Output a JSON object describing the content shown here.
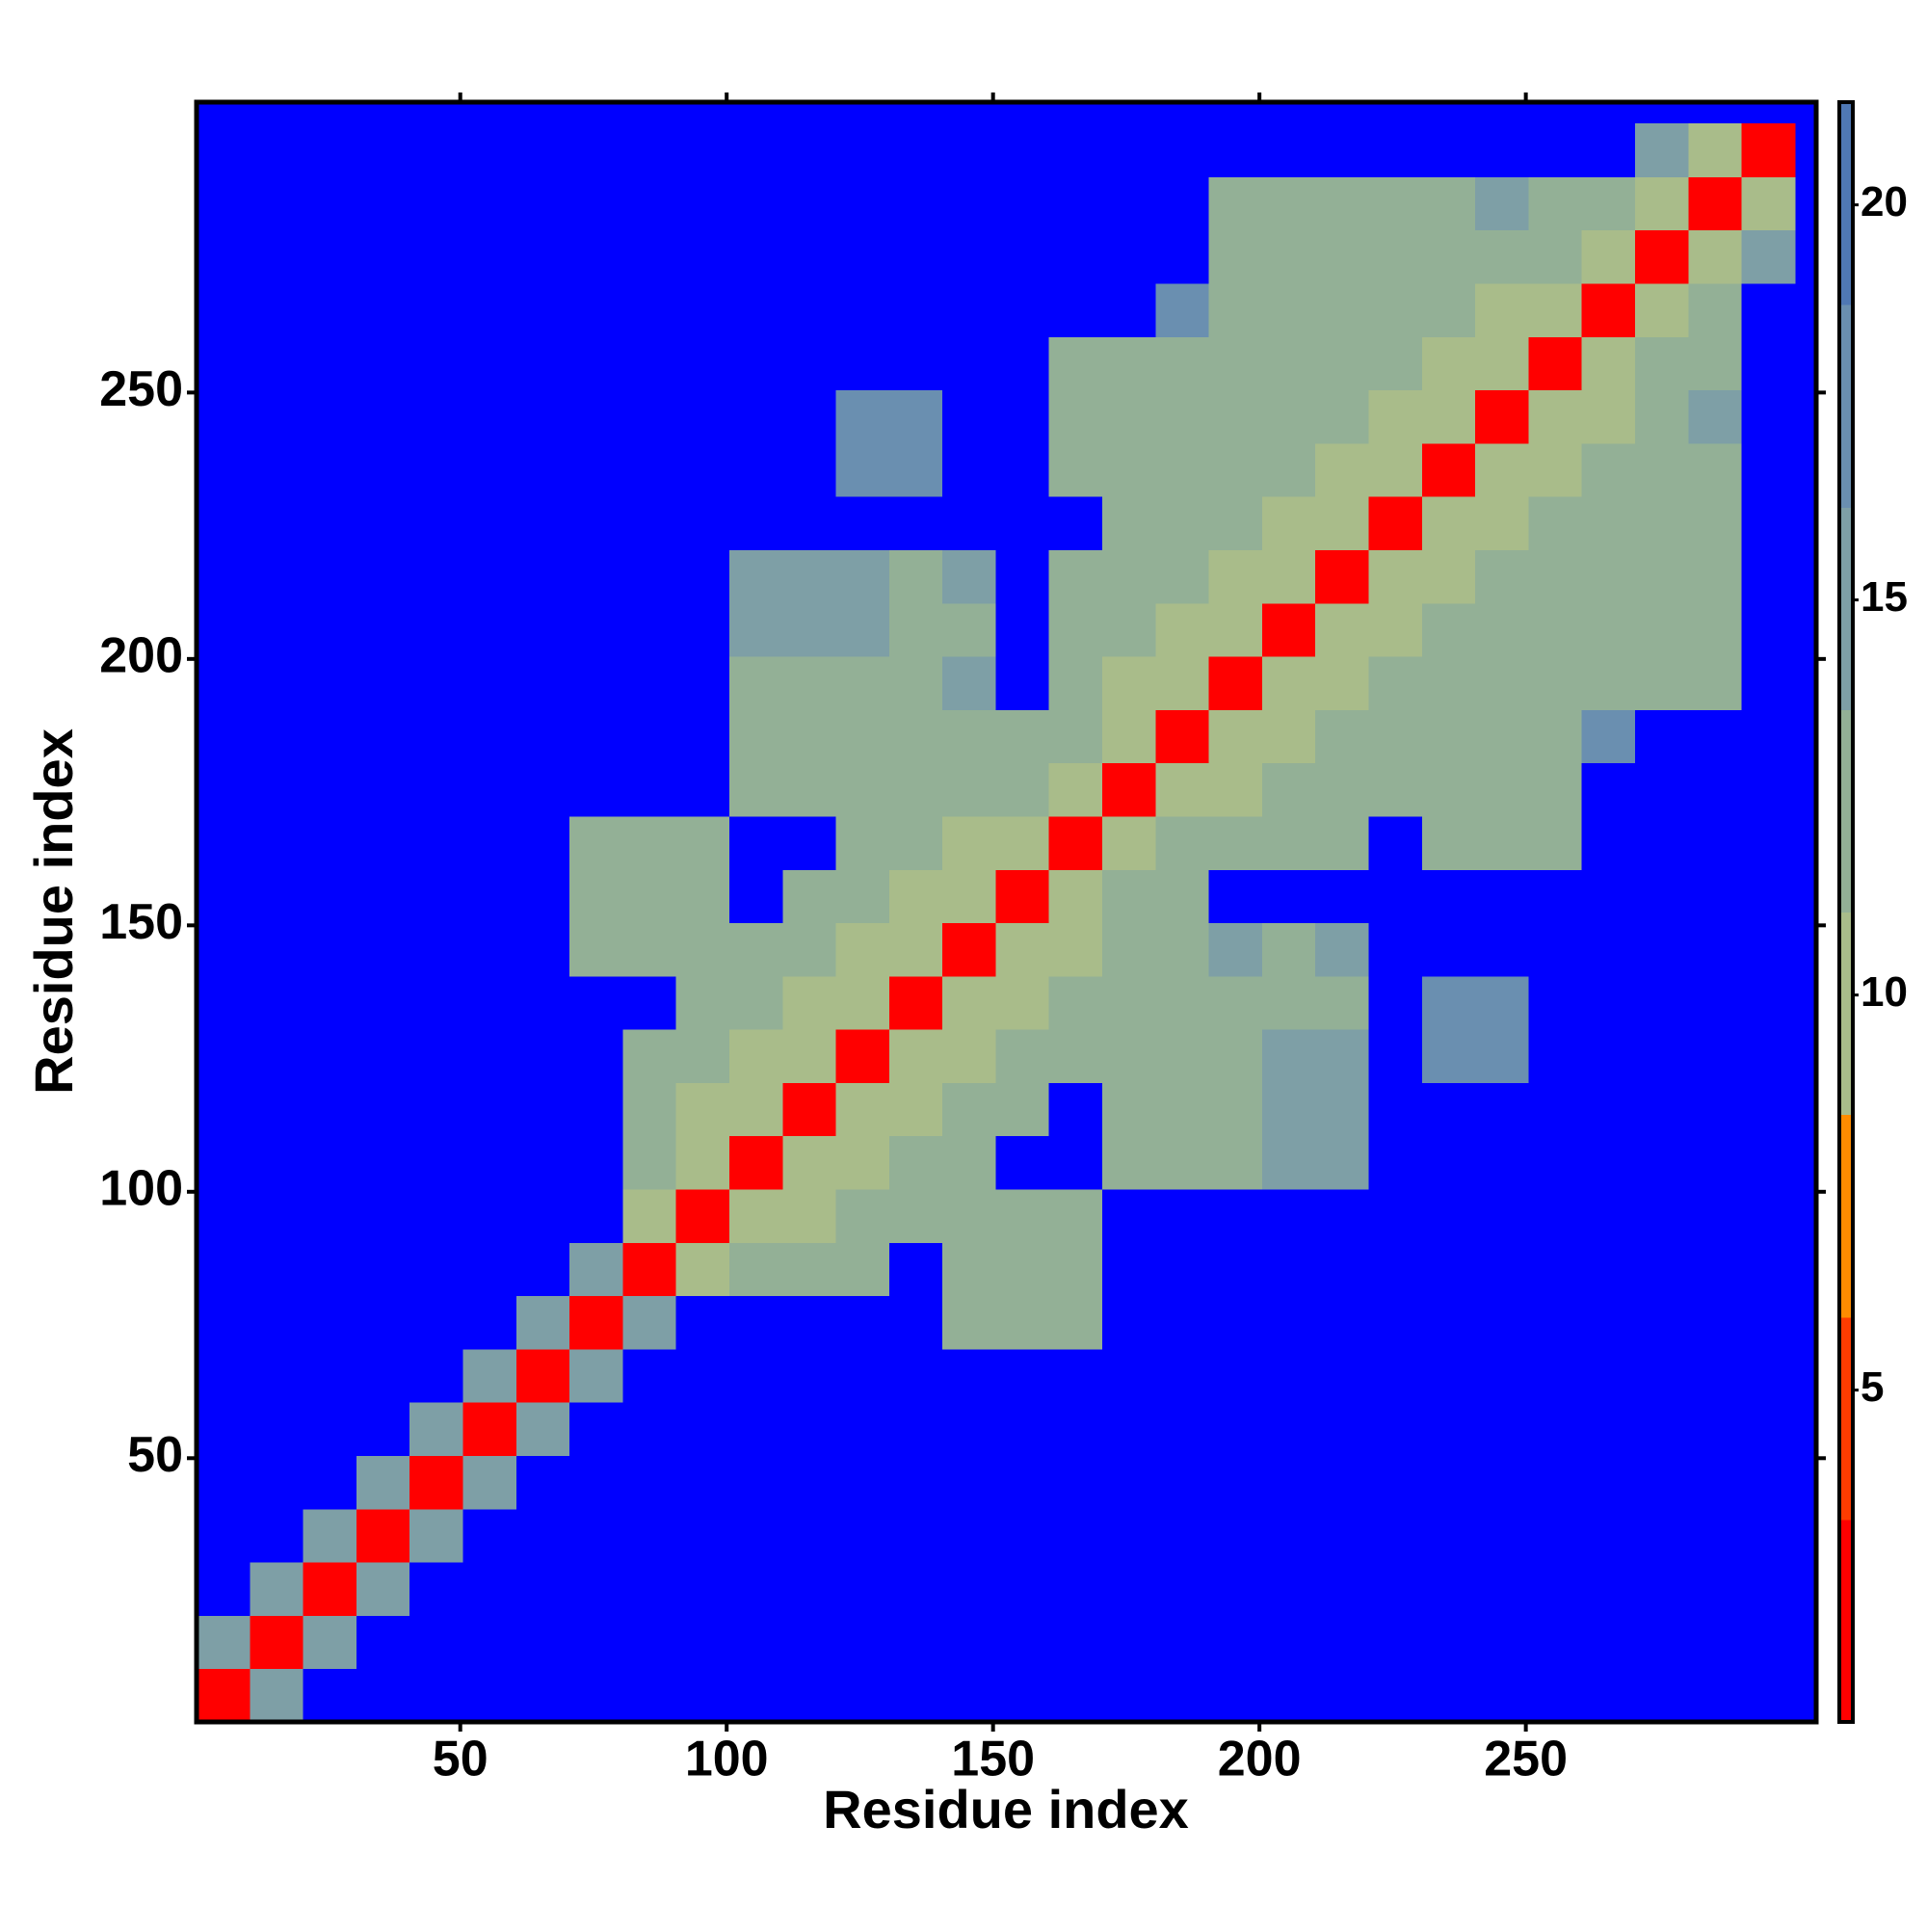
{
  "chart_data": {
    "type": "heatmap",
    "xlabel": "Residue index",
    "ylabel": "Residue index",
    "xlim": [
      0.5,
      304.5
    ],
    "ylim": [
      0.5,
      304.5
    ],
    "xticks": [
      50,
      100,
      150,
      200,
      250
    ],
    "yticks": [
      50,
      100,
      150,
      200,
      250
    ],
    "xbins": [
      0.5,
      10.5,
      20.5,
      30.5,
      40.5,
      50.5,
      60.5,
      70.5,
      80.5,
      90.5,
      100.5,
      110.5,
      120.5,
      130.5,
      140.5,
      150.5,
      160.5,
      170.5,
      180.5,
      190.5,
      200.5,
      210.5,
      220.5,
      230.5,
      240.5,
      250.5,
      260.5,
      270.5,
      280.5,
      290.5,
      300.5
    ],
    "ybins": [
      0.5,
      10.5,
      20.5,
      30.5,
      40.5,
      50.5,
      60.5,
      70.5,
      80.5,
      90.5,
      100.5,
      110.5,
      120.5,
      130.5,
      140.5,
      150.5,
      160.5,
      170.5,
      180.5,
      190.5,
      200.5,
      210.5,
      220.5,
      230.5,
      240.5,
      250.5,
      260.5,
      270.5,
      280.5,
      290.5,
      300.5
    ],
    "z": [
      [
        3,
        14,
        25,
        25,
        25,
        25,
        25,
        25,
        25,
        25,
        25,
        25,
        25,
        25,
        25,
        25,
        25,
        25,
        25,
        25,
        25,
        25,
        25,
        25,
        25,
        25,
        25,
        25,
        25,
        25
      ],
      [
        14,
        3,
        14,
        25,
        25,
        25,
        25,
        25,
        25,
        25,
        25,
        25,
        25,
        25,
        25,
        25,
        25,
        25,
        25,
        25,
        25,
        25,
        25,
        25,
        25,
        25,
        25,
        25,
        25,
        25
      ],
      [
        25,
        14,
        3,
        14,
        25,
        25,
        25,
        25,
        25,
        25,
        25,
        25,
        25,
        25,
        25,
        25,
        25,
        25,
        25,
        25,
        25,
        25,
        25,
        25,
        25,
        25,
        25,
        25,
        25,
        25
      ],
      [
        25,
        25,
        14,
        3,
        14,
        25,
        25,
        25,
        25,
        25,
        25,
        25,
        25,
        25,
        25,
        25,
        25,
        25,
        25,
        25,
        25,
        25,
        25,
        25,
        25,
        25,
        25,
        25,
        25,
        25
      ],
      [
        25,
        25,
        25,
        14,
        3,
        14,
        25,
        25,
        25,
        25,
        25,
        25,
        25,
        25,
        25,
        25,
        25,
        25,
        25,
        25,
        25,
        25,
        25,
        25,
        25,
        25,
        25,
        25,
        25,
        25
      ],
      [
        25,
        25,
        25,
        25,
        14,
        3,
        14,
        25,
        25,
        25,
        25,
        25,
        25,
        25,
        25,
        25,
        25,
        25,
        25,
        25,
        25,
        25,
        25,
        25,
        25,
        25,
        25,
        25,
        25,
        25
      ],
      [
        25,
        25,
        25,
        25,
        25,
        14,
        3,
        14,
        25,
        25,
        25,
        25,
        25,
        25,
        25,
        25,
        25,
        25,
        25,
        25,
        25,
        25,
        25,
        25,
        25,
        25,
        25,
        25,
        25,
        25
      ],
      [
        25,
        25,
        25,
        25,
        25,
        25,
        14,
        3,
        14,
        25,
        25,
        25,
        25,
        25,
        12,
        12,
        12,
        25,
        25,
        25,
        25,
        25,
        25,
        25,
        25,
        25,
        25,
        25,
        25,
        25
      ],
      [
        25,
        25,
        25,
        25,
        25,
        25,
        25,
        14,
        3,
        9,
        12,
        13,
        12,
        25,
        12,
        12,
        12,
        25,
        25,
        25,
        25,
        25,
        25,
        25,
        25,
        25,
        25,
        25,
        25,
        25
      ],
      [
        25,
        25,
        25,
        25,
        25,
        25,
        25,
        25,
        9,
        3,
        9,
        11,
        12,
        12,
        12,
        12,
        13,
        25,
        25,
        25,
        25,
        25,
        25,
        25,
        25,
        25,
        25,
        25,
        25,
        25
      ],
      [
        25,
        25,
        25,
        25,
        25,
        25,
        25,
        25,
        12,
        9,
        3,
        9,
        11,
        12,
        12,
        25,
        25,
        12,
        12,
        13,
        14,
        14,
        25,
        25,
        25,
        25,
        25,
        25,
        25,
        25
      ],
      [
        25,
        25,
        25,
        25,
        25,
        25,
        25,
        25,
        13,
        11,
        9,
        3,
        9,
        11,
        12,
        12,
        25,
        12,
        12,
        12,
        14,
        14,
        25,
        25,
        25,
        25,
        25,
        25,
        25,
        25
      ],
      [
        25,
        25,
        25,
        25,
        25,
        25,
        25,
        25,
        12,
        12,
        11,
        9,
        3,
        9,
        11,
        12,
        13,
        13,
        12,
        13,
        14,
        14,
        25,
        17,
        17,
        25,
        25,
        25,
        25,
        25
      ],
      [
        25,
        25,
        25,
        25,
        25,
        25,
        25,
        25,
        25,
        12,
        12,
        11,
        9,
        3,
        9,
        11,
        12,
        13,
        13,
        13,
        13,
        13,
        25,
        17,
        17,
        25,
        25,
        25,
        25,
        25
      ],
      [
        25,
        25,
        25,
        25,
        25,
        25,
        25,
        12,
        12,
        12,
        12,
        12,
        11,
        9,
        3,
        9,
        11,
        12,
        13,
        14,
        13,
        14,
        25,
        25,
        25,
        25,
        25,
        25,
        25,
        25
      ],
      [
        25,
        25,
        25,
        25,
        25,
        25,
        25,
        12,
        12,
        12,
        25,
        12,
        12,
        11,
        9,
        3,
        9,
        12,
        13,
        25,
        25,
        25,
        25,
        25,
        25,
        25,
        25,
        25,
        25,
        25
      ],
      [
        25,
        25,
        25,
        25,
        25,
        25,
        25,
        12,
        12,
        13,
        25,
        25,
        13,
        12,
        11,
        9,
        3,
        9,
        12,
        13,
        12,
        12,
        25,
        12,
        12,
        12,
        25,
        25,
        25,
        25
      ],
      [
        25,
        25,
        25,
        25,
        25,
        25,
        25,
        25,
        25,
        25,
        12,
        12,
        13,
        13,
        12,
        12,
        9,
        3,
        9,
        11,
        12,
        12,
        13,
        12,
        12,
        12,
        25,
        25,
        25,
        25
      ],
      [
        25,
        25,
        25,
        25,
        25,
        25,
        25,
        25,
        25,
        25,
        12,
        12,
        12,
        13,
        13,
        13,
        12,
        9,
        3,
        9,
        11,
        12,
        12,
        12,
        12,
        12,
        17,
        25,
        25,
        25
      ],
      [
        25,
        25,
        25,
        25,
        25,
        25,
        25,
        25,
        25,
        25,
        13,
        12,
        13,
        13,
        14,
        25,
        13,
        11,
        9,
        3,
        9,
        11,
        12,
        12,
        12,
        13,
        13,
        13,
        13,
        25
      ],
      [
        25,
        25,
        25,
        25,
        25,
        25,
        25,
        25,
        25,
        25,
        14,
        14,
        14,
        13,
        13,
        25,
        12,
        12,
        11,
        9,
        3,
        9,
        11,
        12,
        12,
        13,
        13,
        13,
        13,
        25
      ],
      [
        25,
        25,
        25,
        25,
        25,
        25,
        25,
        25,
        25,
        25,
        14,
        14,
        14,
        13,
        14,
        25,
        12,
        12,
        12,
        11,
        9,
        3,
        9,
        11,
        12,
        12,
        13,
        13,
        13,
        25
      ],
      [
        25,
        25,
        25,
        25,
        25,
        25,
        25,
        25,
        25,
        25,
        25,
        25,
        25,
        25,
        25,
        25,
        25,
        13,
        12,
        12,
        11,
        9,
        3,
        9,
        11,
        12,
        13,
        13,
        13,
        25
      ],
      [
        25,
        25,
        25,
        25,
        25,
        25,
        25,
        25,
        25,
        25,
        25,
        25,
        17,
        17,
        25,
        25,
        12,
        12,
        12,
        12,
        12,
        11,
        9,
        3,
        9,
        11,
        12,
        13,
        13,
        25
      ],
      [
        25,
        25,
        25,
        25,
        25,
        25,
        25,
        25,
        25,
        25,
        25,
        25,
        17,
        17,
        25,
        25,
        12,
        12,
        12,
        12,
        12,
        12,
        11,
        9,
        3,
        9,
        11,
        13,
        14,
        25
      ],
      [
        25,
        25,
        25,
        25,
        25,
        25,
        25,
        25,
        25,
        25,
        25,
        25,
        25,
        25,
        25,
        25,
        12,
        12,
        12,
        13,
        13,
        12,
        12,
        11,
        9,
        3,
        9,
        12,
        13,
        25
      ],
      [
        25,
        25,
        25,
        25,
        25,
        25,
        25,
        25,
        25,
        25,
        25,
        25,
        25,
        25,
        25,
        25,
        25,
        25,
        17,
        13,
        13,
        13,
        13,
        12,
        11,
        9,
        3,
        9,
        13,
        25
      ],
      [
        25,
        25,
        25,
        25,
        25,
        25,
        25,
        25,
        25,
        25,
        25,
        25,
        25,
        25,
        25,
        25,
        25,
        25,
        25,
        13,
        13,
        13,
        13,
        13,
        13,
        12,
        9,
        3,
        9,
        14
      ],
      [
        25,
        25,
        25,
        25,
        25,
        25,
        25,
        25,
        25,
        25,
        25,
        25,
        25,
        25,
        25,
        25,
        25,
        25,
        25,
        13,
        13,
        13,
        13,
        13,
        14,
        13,
        13,
        9,
        3,
        9
      ],
      [
        25,
        25,
        25,
        25,
        25,
        25,
        25,
        25,
        25,
        25,
        25,
        25,
        25,
        25,
        25,
        25,
        25,
        25,
        25,
        25,
        25,
        25,
        25,
        25,
        25,
        25,
        25,
        14,
        9,
        3
      ]
    ],
    "clim": [
      0.8,
      21.3
    ],
    "colorscale": [
      "#ff0000",
      "#ff3c00",
      "#ff8c00",
      "#a9bc8a",
      "#93b096",
      "#7e9fa6",
      "#6a8fb0",
      "#4f78b4"
    ],
    "over_color": "#0000ff",
    "colorbar_ticks": [
      5,
      10,
      15,
      20
    ]
  }
}
